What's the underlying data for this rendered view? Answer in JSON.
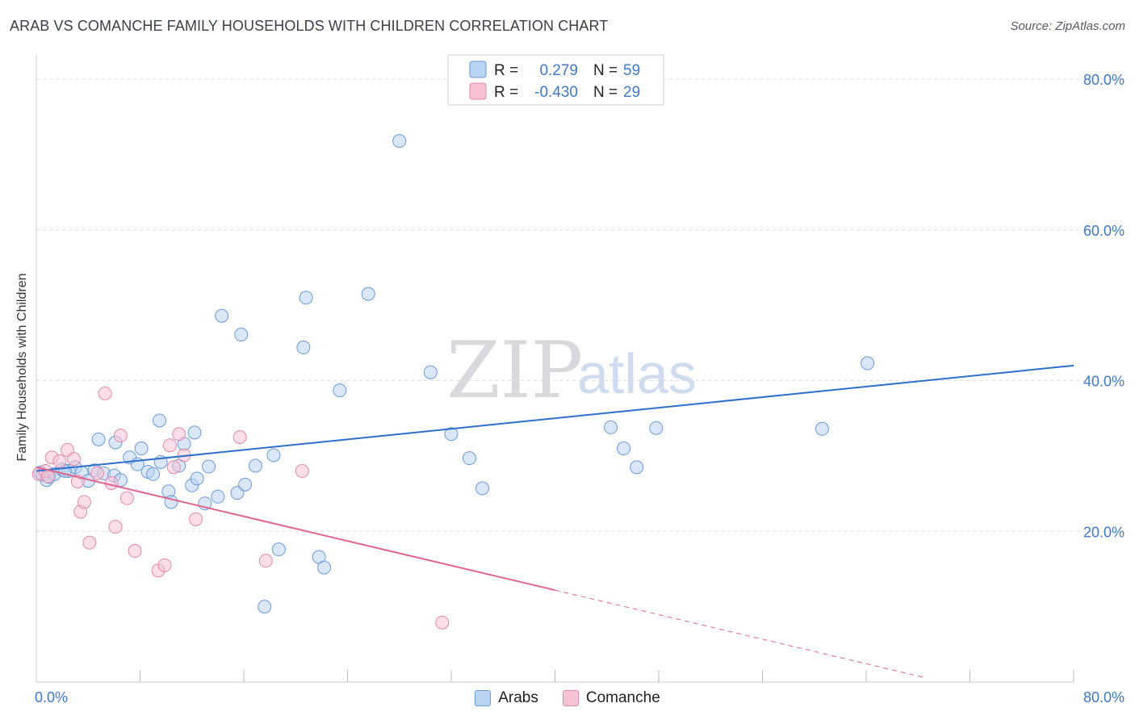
{
  "header": {
    "title": "ARAB VS COMANCHE FAMILY HOUSEHOLDS WITH CHILDREN CORRELATION CHART",
    "source": "Source: ZipAtlas.com"
  },
  "watermark": {
    "zip": "ZIP",
    "atlas": "atlas"
  },
  "colors": {
    "arabs_fill": "#b9d3f3",
    "arabs_stroke": "#6b9ad8",
    "arabs_line": "#2f6fcc",
    "comanche_fill": "#f7c2d3",
    "comanche_stroke": "#e58aa8",
    "comanche_line": "#e0668f",
    "tick_label": "#3f78c8",
    "grid": "#dddddd"
  },
  "legend": {
    "rows": [
      {
        "r_label": "R =",
        "r_value": "0.279",
        "n_label": "N =",
        "n_value": "59"
      },
      {
        "r_label": "R =",
        "r_value": "-0.430",
        "n_label": "N =",
        "n_value": "29"
      }
    ]
  },
  "chart_data": {
    "type": "scatter",
    "title": "ARAB VS COMANCHE FAMILY HOUSEHOLDS WITH CHILDREN CORRELATION CHART",
    "xlabel": "",
    "ylabel": "Family Households with Children",
    "xlim": [
      0,
      80
    ],
    "ylim": [
      0,
      80
    ],
    "x_tick_labels": [
      {
        "value": 0,
        "label": "0.0%"
      },
      {
        "value": 80,
        "label": "80.0%"
      }
    ],
    "y_tick_labels": [
      {
        "value": 20,
        "label": "20.0%"
      },
      {
        "value": 40,
        "label": "40.0%"
      },
      {
        "value": 60,
        "label": "60.0%"
      },
      {
        "value": 80,
        "label": "80.0%"
      }
    ],
    "x_minor_ticks": [
      8,
      16,
      24,
      32,
      40,
      48,
      56,
      64,
      72,
      80
    ],
    "series": [
      {
        "name": "Arabs",
        "r": 0.279,
        "n": 59,
        "trend": {
          "x": [
            0,
            80
          ],
          "y": [
            28.0,
            42.0
          ]
        },
        "points": [
          [
            0.3,
            27.8
          ],
          [
            0.5,
            27.5
          ],
          [
            0.8,
            26.8
          ],
          [
            1.0,
            27.2
          ],
          [
            1.4,
            27.6
          ],
          [
            2.0,
            28.2
          ],
          [
            2.5,
            28.0
          ],
          [
            3.0,
            28.5
          ],
          [
            3.5,
            27.8
          ],
          [
            4.0,
            26.7
          ],
          [
            4.5,
            28.1
          ],
          [
            5.2,
            27.7
          ],
          [
            6.0,
            27.4
          ],
          [
            6.5,
            26.8
          ],
          [
            4.8,
            32.2
          ],
          [
            6.1,
            31.8
          ],
          [
            7.2,
            29.8
          ],
          [
            7.8,
            28.9
          ],
          [
            8.1,
            31.0
          ],
          [
            8.6,
            27.9
          ],
          [
            9.0,
            27.6
          ],
          [
            9.6,
            29.2
          ],
          [
            10.2,
            25.3
          ],
          [
            10.4,
            23.9
          ],
          [
            11.0,
            28.7
          ],
          [
            11.4,
            31.6
          ],
          [
            12.0,
            26.1
          ],
          [
            12.4,
            27.0
          ],
          [
            13.0,
            23.7
          ],
          [
            13.3,
            28.6
          ],
          [
            14.0,
            24.6
          ],
          [
            15.5,
            25.1
          ],
          [
            16.1,
            26.2
          ],
          [
            16.9,
            28.7
          ],
          [
            18.3,
            30.1
          ],
          [
            9.5,
            34.7
          ],
          [
            12.2,
            33.1
          ],
          [
            14.3,
            48.6
          ],
          [
            15.8,
            46.1
          ],
          [
            18.7,
            17.6
          ],
          [
            17.6,
            10.0
          ],
          [
            20.6,
            44.4
          ],
          [
            20.8,
            51.0
          ],
          [
            21.8,
            16.6
          ],
          [
            22.2,
            15.2
          ],
          [
            23.4,
            38.7
          ],
          [
            25.6,
            51.5
          ],
          [
            28.0,
            71.8
          ],
          [
            30.4,
            41.1
          ],
          [
            32.0,
            32.9
          ],
          [
            33.4,
            29.7
          ],
          [
            34.4,
            25.7
          ],
          [
            44.3,
            33.8
          ],
          [
            45.3,
            31.0
          ],
          [
            46.3,
            28.5
          ],
          [
            47.8,
            33.7
          ],
          [
            60.6,
            33.6
          ],
          [
            64.1,
            42.3
          ],
          [
            2.2,
            28.0
          ]
        ]
      },
      {
        "name": "Comanche",
        "r": -0.43,
        "n": 29,
        "trend": {
          "x": [
            0,
            40
          ],
          "y": [
            28.5,
            12.2
          ]
        },
        "trend_dashed": {
          "x": [
            40,
            68.5
          ],
          "y": [
            12.2,
            0.6
          ]
        },
        "points": [
          [
            0.2,
            27.6
          ],
          [
            0.7,
            28.0
          ],
          [
            1.2,
            29.8
          ],
          [
            1.8,
            29.3
          ],
          [
            2.4,
            30.8
          ],
          [
            2.9,
            29.6
          ],
          [
            3.2,
            26.6
          ],
          [
            3.4,
            22.6
          ],
          [
            3.7,
            23.9
          ],
          [
            4.1,
            18.5
          ],
          [
            4.7,
            27.7
          ],
          [
            5.3,
            38.3
          ],
          [
            5.8,
            26.4
          ],
          [
            6.1,
            20.6
          ],
          [
            6.5,
            32.7
          ],
          [
            7.0,
            24.4
          ],
          [
            7.6,
            17.4
          ],
          [
            9.4,
            14.8
          ],
          [
            9.9,
            15.5
          ],
          [
            10.3,
            31.4
          ],
          [
            10.6,
            28.5
          ],
          [
            11.0,
            32.9
          ],
          [
            11.4,
            30.1
          ],
          [
            12.3,
            21.6
          ],
          [
            15.7,
            32.5
          ],
          [
            17.7,
            16.1
          ],
          [
            20.5,
            28.0
          ],
          [
            31.3,
            7.9
          ],
          [
            0.9,
            27.3
          ]
        ]
      }
    ]
  },
  "bottom_legend": {
    "items": [
      {
        "label": "Arabs"
      },
      {
        "label": "Comanche"
      }
    ]
  }
}
